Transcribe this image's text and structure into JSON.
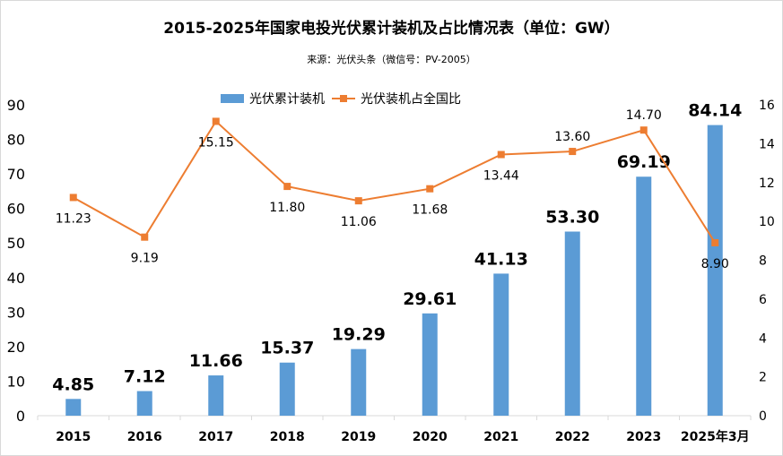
{
  "chart_data": {
    "type": "bar+line",
    "title": "2015-2025年国家电投光伏累计装机及占比情况表（单位：GW）",
    "subtitle": "来源：光伏头条（微信号：PV-2005）",
    "categories": [
      "2015",
      "2016",
      "2017",
      "2018",
      "2019",
      "2020",
      "2021",
      "2022",
      "2023",
      "2025年3月"
    ],
    "series": [
      {
        "name": "光伏累计装机",
        "type": "bar",
        "axis": "left",
        "color": "#5B9BD5",
        "values": [
          4.85,
          7.12,
          11.66,
          15.37,
          19.29,
          29.61,
          41.13,
          53.3,
          69.19,
          84.14
        ],
        "labels": [
          "4.85",
          "7.12",
          "11.66",
          "15.37",
          "19.29",
          "29.61",
          "41.13",
          "53.30",
          "69.19",
          "84.14"
        ]
      },
      {
        "name": "光伏装机占全国比",
        "type": "line",
        "axis": "right",
        "color": "#ED7D31",
        "values": [
          11.23,
          9.19,
          15.15,
          11.8,
          11.06,
          11.68,
          13.44,
          13.6,
          14.7,
          8.9
        ],
        "labels": [
          "11.23",
          "9.19",
          "15.15",
          "11.80",
          "11.06",
          "11.68",
          "13.44",
          "13.60",
          "14.70",
          "8.90"
        ],
        "label_position": [
          "below",
          "below",
          "below",
          "below",
          "below",
          "below",
          "below",
          "above",
          "above",
          "below"
        ]
      }
    ],
    "y_left": {
      "range": [
        0,
        90
      ],
      "ticks": [
        "0",
        "10",
        "20",
        "30",
        "40",
        "50",
        "60",
        "70",
        "80",
        "90"
      ]
    },
    "y_right": {
      "range": [
        0,
        16
      ],
      "ticks": [
        "0",
        "2",
        "4",
        "6",
        "8",
        "10",
        "12",
        "14",
        "16"
      ]
    },
    "grid": false,
    "legend": "top"
  }
}
